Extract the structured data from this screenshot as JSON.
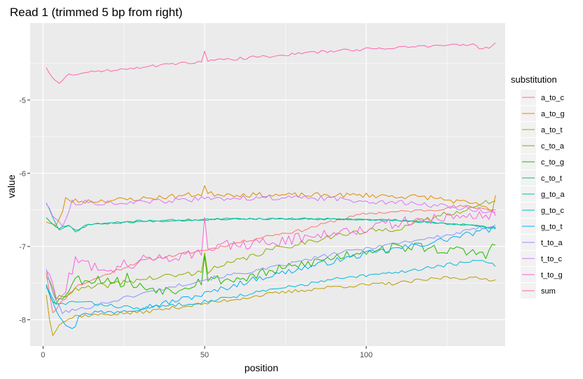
{
  "chart_data": {
    "type": "line",
    "title": "Read 1 (trimmed 5 bp from right)",
    "xlabel": "position",
    "ylabel": "value",
    "xlim": [
      -4,
      143
    ],
    "ylim": [
      -8.36,
      -3.95
    ],
    "x_ticks": [
      0,
      50,
      100
    ],
    "y_ticks": [
      -5,
      -6,
      -7,
      -8
    ],
    "x_minor_ticks": [
      25,
      75,
      125
    ],
    "y_minor_ticks": [
      -4.5,
      -5.5,
      -6.5,
      -7.5
    ],
    "grid": true,
    "legend": {
      "title": "substitution",
      "position": "right"
    },
    "x_range": [
      1,
      140
    ],
    "series": [
      {
        "name": "a_to_c",
        "color": "#F8766D",
        "seed": 11,
        "noise": 0.02,
        "spikes": [],
        "knots": [
          [
            1,
            -7.35
          ],
          [
            3,
            -7.9
          ],
          [
            5,
            -7.8
          ],
          [
            10,
            -7.55
          ],
          [
            30,
            -7.2
          ],
          [
            50,
            -7.05
          ],
          [
            70,
            -6.85
          ],
          [
            80,
            -6.78
          ],
          [
            90,
            -6.65
          ],
          [
            100,
            -6.55
          ],
          [
            120,
            -6.5
          ],
          [
            130,
            -6.45
          ],
          [
            140,
            -6.5
          ]
        ]
      },
      {
        "name": "a_to_g",
        "color": "#E18A00",
        "seed": 23,
        "noise": 0.035,
        "spikes": [
          [
            50,
            0.1
          ],
          [
            7,
            0.15
          ]
        ],
        "knots": [
          [
            1,
            -6.65
          ],
          [
            4,
            -6.72
          ],
          [
            6,
            -6.55
          ],
          [
            8,
            -6.38
          ],
          [
            15,
            -6.38
          ],
          [
            30,
            -6.35
          ],
          [
            50,
            -6.28
          ],
          [
            70,
            -6.3
          ],
          [
            100,
            -6.3
          ],
          [
            120,
            -6.33
          ],
          [
            130,
            -6.4
          ],
          [
            137,
            -6.45
          ],
          [
            139,
            -6.55
          ],
          [
            140,
            -6.32
          ]
        ]
      },
      {
        "name": "a_to_t",
        "color": "#BE9C00",
        "seed": 37,
        "noise": 0.025,
        "spikes": [],
        "knots": [
          [
            1,
            -7.65
          ],
          [
            2,
            -8.0
          ],
          [
            3,
            -8.2
          ],
          [
            5,
            -8.05
          ],
          [
            10,
            -7.95
          ],
          [
            30,
            -7.9
          ],
          [
            50,
            -7.78
          ],
          [
            70,
            -7.65
          ],
          [
            90,
            -7.55
          ],
          [
            110,
            -7.5
          ],
          [
            125,
            -7.42
          ],
          [
            140,
            -7.45
          ]
        ]
      },
      {
        "name": "c_to_a",
        "color": "#8CAB00",
        "seed": 41,
        "noise": 0.04,
        "spikes": [
          [
            50,
            0.3
          ]
        ],
        "knots": [
          [
            1,
            -7.4
          ],
          [
            4,
            -7.7
          ],
          [
            10,
            -7.6
          ],
          [
            30,
            -7.45
          ],
          [
            50,
            -7.35
          ],
          [
            70,
            -7.05
          ],
          [
            90,
            -6.85
          ],
          [
            110,
            -6.75
          ],
          [
            125,
            -6.55
          ],
          [
            135,
            -6.45
          ],
          [
            140,
            -6.35
          ]
        ]
      },
      {
        "name": "c_to_g",
        "color": "#24B700",
        "seed": 53,
        "noise": 0.07,
        "spikes": [
          [
            50,
            0.35
          ],
          [
            26,
            0.12
          ]
        ],
        "knots": [
          [
            1,
            -7.5
          ],
          [
            4,
            -7.8
          ],
          [
            10,
            -7.45
          ],
          [
            20,
            -7.45
          ],
          [
            30,
            -7.55
          ],
          [
            40,
            -7.6
          ],
          [
            50,
            -7.45
          ],
          [
            60,
            -7.45
          ],
          [
            80,
            -7.25
          ],
          [
            100,
            -7.05
          ],
          [
            115,
            -7.0
          ],
          [
            125,
            -7.05
          ],
          [
            137,
            -7.1
          ],
          [
            140,
            -6.97
          ]
        ]
      },
      {
        "name": "c_to_t",
        "color": "#00BE70",
        "seed": 67,
        "noise": 0.012,
        "spikes": [],
        "knots": [
          [
            1,
            -6.6
          ],
          [
            3,
            -6.7
          ],
          [
            5,
            -6.75
          ],
          [
            8,
            -6.7
          ],
          [
            10,
            -6.8
          ],
          [
            14,
            -6.7
          ],
          [
            30,
            -6.66
          ],
          [
            60,
            -6.62
          ],
          [
            90,
            -6.63
          ],
          [
            110,
            -6.64
          ],
          [
            130,
            -6.7
          ],
          [
            140,
            -6.75
          ]
        ]
      },
      {
        "name": "g_to_a",
        "color": "#00C1AB",
        "seed": 71,
        "noise": 0.012,
        "spikes": [],
        "knots": [
          [
            1,
            -6.4
          ],
          [
            3,
            -6.6
          ],
          [
            5,
            -6.78
          ],
          [
            8,
            -6.72
          ],
          [
            10,
            -6.78
          ],
          [
            14,
            -6.7
          ],
          [
            30,
            -6.65
          ],
          [
            60,
            -6.62
          ],
          [
            90,
            -6.62
          ],
          [
            110,
            -6.65
          ],
          [
            130,
            -6.7
          ],
          [
            140,
            -6.75
          ]
        ]
      },
      {
        "name": "g_to_c",
        "color": "#00BBDA",
        "seed": 83,
        "noise": 0.025,
        "spikes": [],
        "knots": [
          [
            1,
            -7.55
          ],
          [
            4,
            -7.8
          ],
          [
            10,
            -7.75
          ],
          [
            30,
            -7.85
          ],
          [
            50,
            -7.75
          ],
          [
            70,
            -7.6
          ],
          [
            90,
            -7.45
          ],
          [
            110,
            -7.35
          ],
          [
            125,
            -7.25
          ],
          [
            135,
            -7.2
          ],
          [
            140,
            -7.25
          ]
        ]
      },
      {
        "name": "g_to_t",
        "color": "#00ACFC",
        "seed": 97,
        "noise": 0.04,
        "spikes": [],
        "knots": [
          [
            1,
            -7.5
          ],
          [
            4,
            -7.85
          ],
          [
            7,
            -8.05
          ],
          [
            9,
            -8.15
          ],
          [
            12,
            -7.9
          ],
          [
            20,
            -7.9
          ],
          [
            35,
            -7.8
          ],
          [
            50,
            -7.65
          ],
          [
            65,
            -7.45
          ],
          [
            85,
            -7.25
          ],
          [
            100,
            -7.1
          ],
          [
            120,
            -6.95
          ],
          [
            135,
            -6.8
          ],
          [
            140,
            -6.75
          ]
        ]
      },
      {
        "name": "t_to_a",
        "color": "#8B93FF",
        "seed": 101,
        "noise": 0.025,
        "spikes": [],
        "knots": [
          [
            1,
            -7.3
          ],
          [
            3,
            -7.65
          ],
          [
            6,
            -7.9
          ],
          [
            12,
            -7.85
          ],
          [
            30,
            -7.65
          ],
          [
            50,
            -7.45
          ],
          [
            70,
            -7.3
          ],
          [
            90,
            -7.1
          ],
          [
            110,
            -6.95
          ],
          [
            125,
            -6.85
          ],
          [
            140,
            -6.7
          ]
        ]
      },
      {
        "name": "t_to_c",
        "color": "#D575FE",
        "seed": 113,
        "noise": 0.035,
        "spikes": [],
        "knots": [
          [
            1,
            -6.4
          ],
          [
            4,
            -6.65
          ],
          [
            6,
            -6.7
          ],
          [
            9,
            -6.4
          ],
          [
            15,
            -6.4
          ],
          [
            30,
            -6.4
          ],
          [
            50,
            -6.35
          ],
          [
            70,
            -6.33
          ],
          [
            90,
            -6.35
          ],
          [
            110,
            -6.4
          ],
          [
            125,
            -6.45
          ],
          [
            135,
            -6.5
          ],
          [
            140,
            -6.55
          ]
        ]
      },
      {
        "name": "t_to_g",
        "color": "#F962DD",
        "seed": 127,
        "noise": 0.08,
        "spikes": [
          [
            50,
            0.45
          ],
          [
            5,
            0.15
          ]
        ],
        "knots": [
          [
            1,
            -7.3
          ],
          [
            3,
            -7.55
          ],
          [
            5,
            -7.8
          ],
          [
            10,
            -7.2
          ],
          [
            20,
            -7.3
          ],
          [
            30,
            -7.2
          ],
          [
            45,
            -7.1
          ],
          [
            50,
            -7.05
          ],
          [
            55,
            -7.0
          ],
          [
            70,
            -6.95
          ],
          [
            90,
            -6.8
          ],
          [
            110,
            -6.68
          ],
          [
            125,
            -6.6
          ],
          [
            140,
            -6.55
          ]
        ]
      },
      {
        "name": "sum",
        "color": "#FF65AC",
        "seed": 131,
        "noise": 0.02,
        "spikes": [
          [
            50,
            0.12
          ]
        ],
        "knots": [
          [
            1,
            -4.55
          ],
          [
            3,
            -4.7
          ],
          [
            5,
            -4.78
          ],
          [
            8,
            -4.65
          ],
          [
            15,
            -4.62
          ],
          [
            30,
            -4.55
          ],
          [
            50,
            -4.47
          ],
          [
            70,
            -4.4
          ],
          [
            90,
            -4.33
          ],
          [
            110,
            -4.28
          ],
          [
            125,
            -4.25
          ],
          [
            133,
            -4.25
          ],
          [
            136,
            -4.3
          ],
          [
            138,
            -4.28
          ],
          [
            140,
            -4.2
          ]
        ]
      }
    ]
  }
}
